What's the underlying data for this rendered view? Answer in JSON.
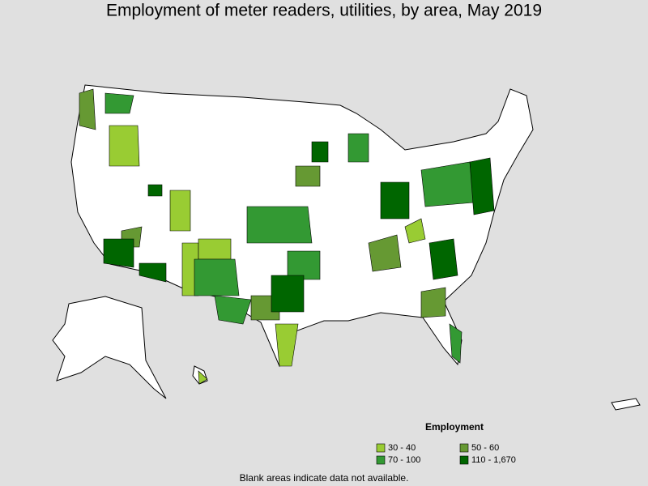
{
  "title": "Employment of meter readers, utilities, by area, May 2019",
  "legend": {
    "title": "Employment",
    "items": [
      {
        "label": "30 - 40",
        "color": "#99cc33"
      },
      {
        "label": "50 - 60",
        "color": "#669933"
      },
      {
        "label": "70 - 100",
        "color": "#339933"
      },
      {
        "label": "110 - 1,670",
        "color": "#006600"
      }
    ]
  },
  "note": "Blank areas indicate data not available."
}
